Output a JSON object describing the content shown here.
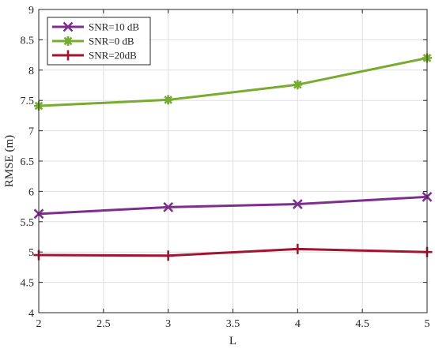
{
  "chart_data": {
    "type": "line",
    "title": "",
    "xlabel": "L",
    "ylabel": "RMSE (m)",
    "x": [
      2,
      3,
      4,
      5
    ],
    "xlim": [
      2,
      5
    ],
    "ylim": [
      4,
      9
    ],
    "xticks": [
      "2",
      "2.5",
      "3",
      "3.5",
      "4",
      "4.5",
      "5"
    ],
    "yticks": [
      "4",
      "4.5",
      "5",
      "5.5",
      "6",
      "6.5",
      "7",
      "7.5",
      "8",
      "8.5",
      "9"
    ],
    "grid": true,
    "legend_position": "top-left",
    "series": [
      {
        "name": "SNR=10 dB",
        "values": [
          5.63,
          5.74,
          5.79,
          5.91
        ],
        "color": "#7E2F8E",
        "marker": "x"
      },
      {
        "name": "SNR=0 dB",
        "values": [
          7.41,
          7.51,
          7.76,
          8.2
        ],
        "color": "#77AC30",
        "marker": "asterisk"
      },
      {
        "name": "SNR=20dB",
        "values": [
          4.95,
          4.94,
          5.05,
          5.0
        ],
        "color": "#A2142F",
        "marker": "plus"
      }
    ]
  }
}
